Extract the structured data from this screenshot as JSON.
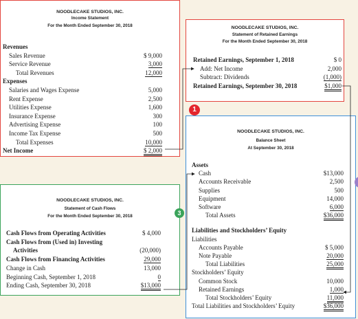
{
  "income_statement": {
    "company": "NOODLECAKE STUDIOS, INC.",
    "title": "Income Statement",
    "period": "For the Month Ended September 30, 2018",
    "rows": [
      [
        "Revenues"
      ],
      [
        "Sales Revenue",
        "$ 9,000"
      ],
      [
        "Service Revenue",
        "3,000"
      ],
      [
        "Total Revenues",
        "12,000"
      ],
      [
        "Expenses"
      ],
      [
        "Salaries and Wages Expense",
        "5,000"
      ],
      [
        "Rent Expense",
        "2,500"
      ],
      [
        "Utilities Expense",
        "1,600"
      ],
      [
        "Insurance Expense",
        "300"
      ],
      [
        "Advertising Expense",
        "100"
      ],
      [
        "Income Tax Expense",
        "500"
      ],
      [
        "Total Expenses",
        "10,000"
      ],
      [
        "Net Income",
        "$ 2,000"
      ]
    ]
  },
  "retained_earnings": {
    "company": "NOODLECAKE STUDIOS, INC.",
    "title": "Statement of Retained Earnings",
    "period": "For the Month Ended September 30, 2018",
    "rows": [
      [
        "Retained Earnings, September 1, 2018",
        "$      0"
      ],
      [
        "Add: Net Income",
        "2,000"
      ],
      [
        "Subtract: Dividends",
        "(1,000)"
      ],
      [
        "Retained Earnings, September 30, 2018",
        "$1,000"
      ]
    ]
  },
  "balance_sheet": {
    "company": "NOODLECAKE STUDIOS, INC.",
    "title": "Balance Sheet",
    "period": "At September 30, 2018",
    "rows": [
      [
        "Assets"
      ],
      [
        "Cash",
        "$13,000"
      ],
      [
        "Accounts Receivable",
        "2,500"
      ],
      [
        "Supplies",
        "500"
      ],
      [
        "Equipment",
        "14,000"
      ],
      [
        "Software",
        "6,000"
      ],
      [
        "Total Assets",
        "$36,000"
      ],
      [
        "Liabilities and Stockholders’ Equity"
      ],
      [
        "Liabilities"
      ],
      [
        "Accounts Payable",
        "$ 5,000"
      ],
      [
        "Note Payable",
        "20,000"
      ],
      [
        "Total Liabilities",
        "25,000"
      ],
      [
        "Stockholders’ Equity"
      ],
      [
        "Common Stock",
        "10,000"
      ],
      [
        "Retained Earnings",
        "1,000"
      ],
      [
        "Total Stockholders’ Equity",
        "11,000"
      ],
      [
        "Total Liabilities and Stockholders’ Equity",
        "$36,000"
      ]
    ]
  },
  "cash_flows": {
    "company": "NOODLECAKE STUDIOS, INC.",
    "title": "Statement of Cash Flows",
    "period": "For the Month Ended September 30, 2018",
    "rows": [
      [
        "Cash Flows from Operating Activities",
        "$ 4,000"
      ],
      [
        "Cash Flows from (Used in) Investing"
      ],
      [
        "Activities",
        "(20,000)"
      ],
      [
        "Cash Flows from Financing Activities",
        "29,000"
      ],
      [
        "Change in Cash",
        "13,000"
      ],
      [
        "Beginning Cash, September 1, 2018",
        "0"
      ],
      [
        "Ending Cash, September 30, 2018",
        "$13,000"
      ]
    ]
  },
  "markers": [
    "1",
    "3"
  ]
}
